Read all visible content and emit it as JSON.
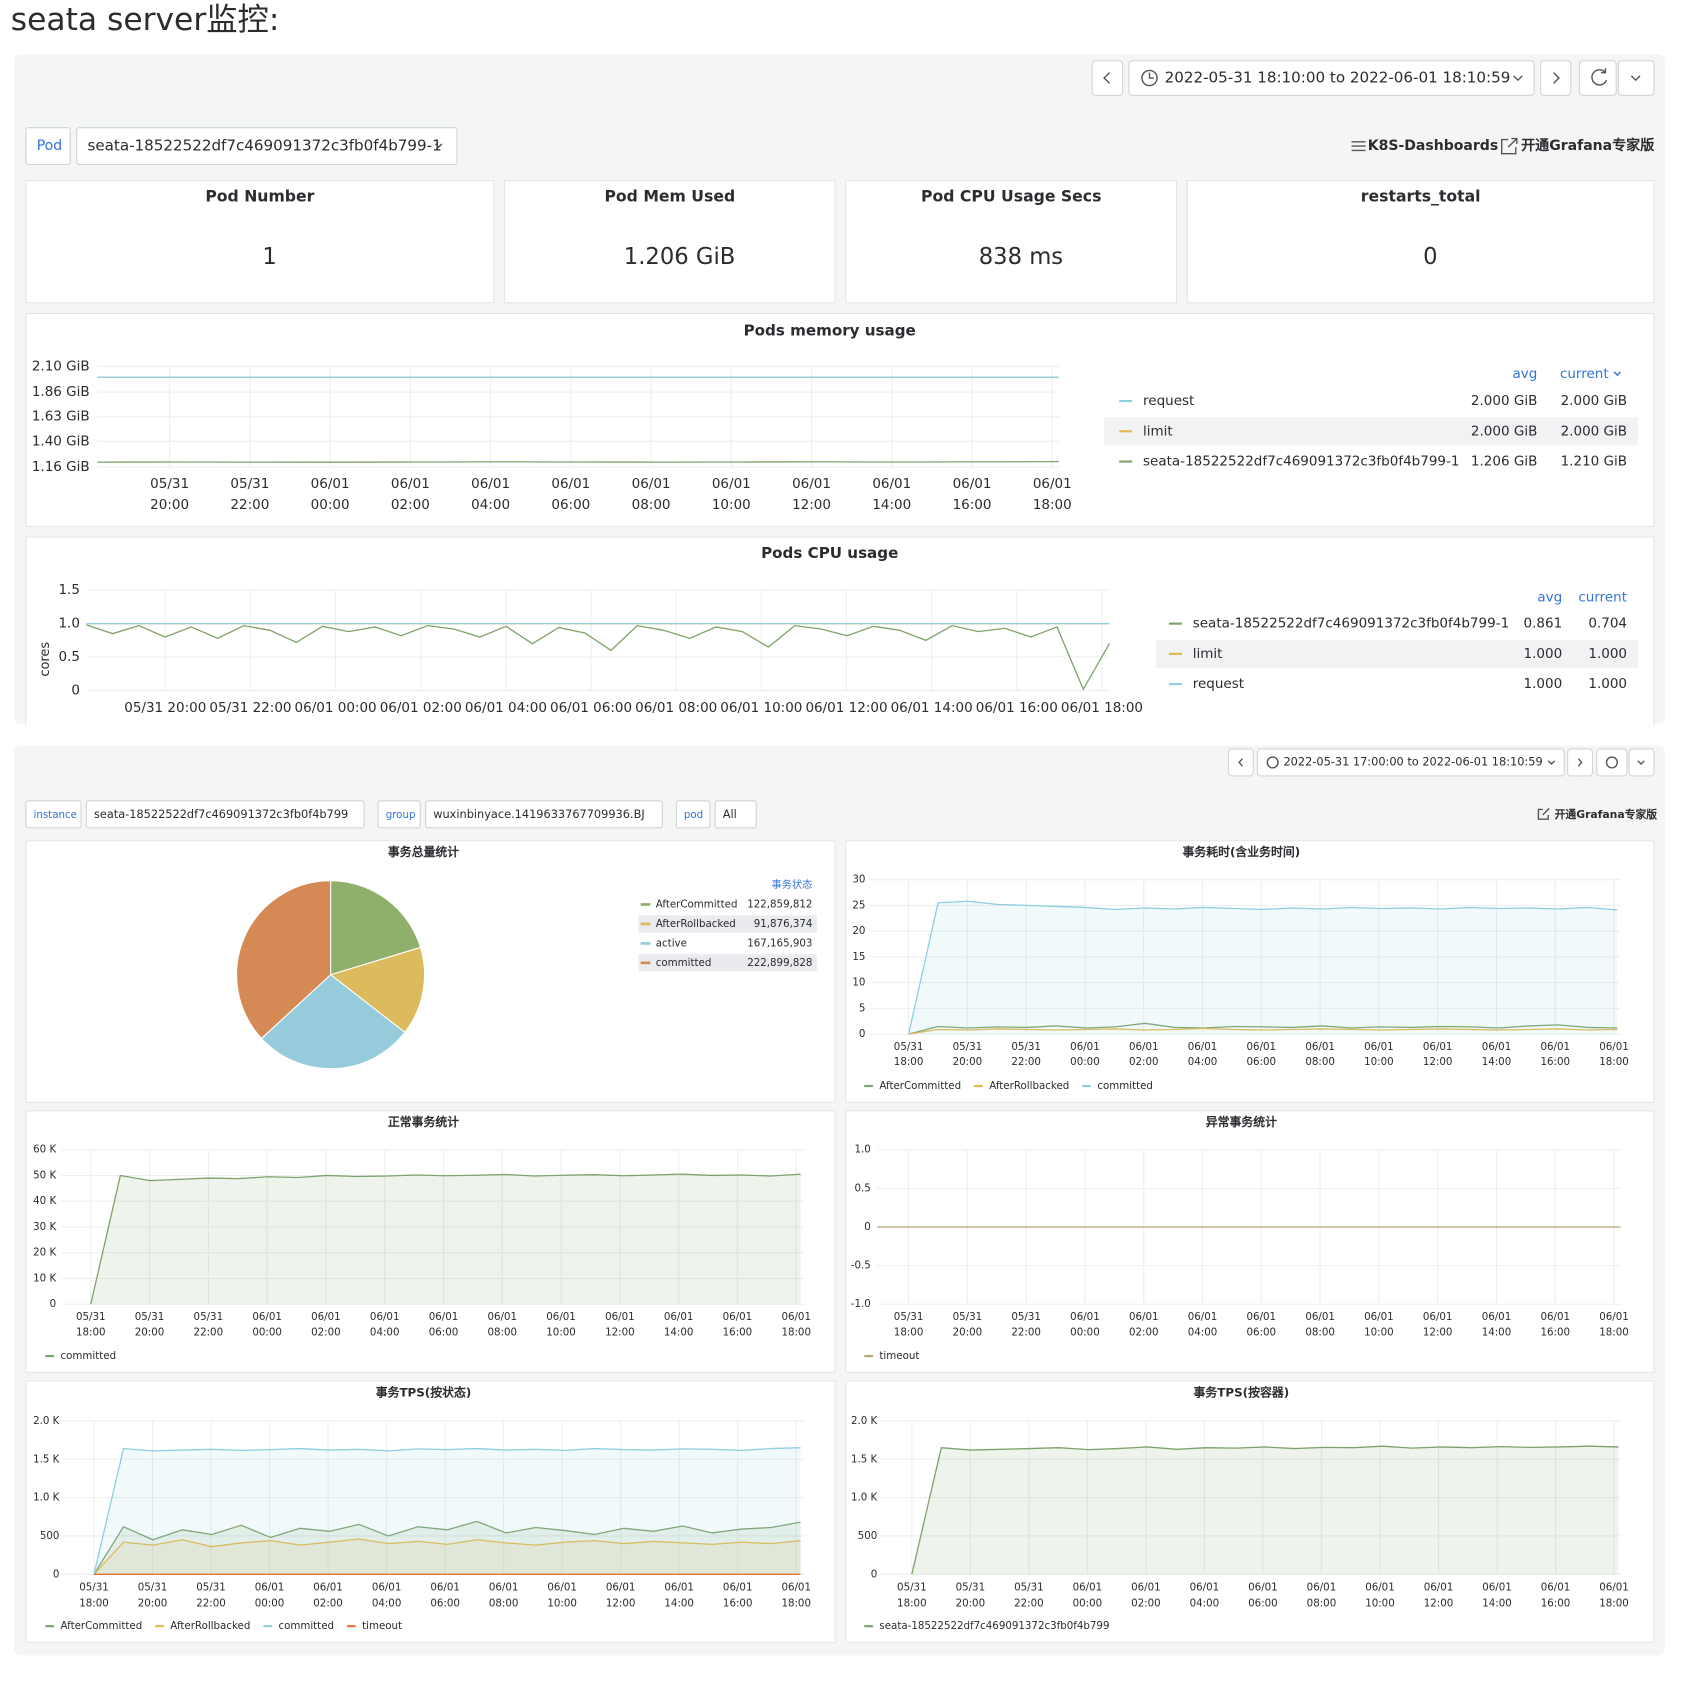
{
  "header": {
    "title": "seata server监控:"
  },
  "dashboard1": {
    "time_range": "2022-05-31 18:10:00 to 2022-06-01 18:10:59",
    "variable_label": "Pod",
    "variable_value": "seata-18522522df7c469091372c3fb0f4b799-1",
    "links": [
      "K8S-Dashboards",
      "开通Grafana专家版"
    ],
    "stats": [
      {
        "title": "Pod Number",
        "value": "1"
      },
      {
        "title": "Pod Mem Used",
        "value": "1.206 GiB"
      },
      {
        "title": "Pod CPU Usage Secs",
        "value": "838 ms"
      },
      {
        "title": "restarts_total",
        "value": "0"
      }
    ],
    "memory": {
      "type": "line",
      "title": "Pods memory usage",
      "ylim": [
        1.16,
        2.1
      ],
      "yticks": [
        {
          "value": 1.16,
          "label": "1.16 GiB"
        },
        {
          "value": 1.4,
          "label": "1.40 GiB"
        },
        {
          "value": 1.63,
          "label": "1.63 GiB"
        },
        {
          "value": 1.86,
          "label": "1.86 GiB"
        },
        {
          "value": 2.1,
          "label": "2.10 GiB"
        }
      ],
      "xticks": [
        [
          "05/31",
          "20:00"
        ],
        [
          "05/31",
          "22:00"
        ],
        [
          "06/01",
          "00:00"
        ],
        [
          "06/01",
          "02:00"
        ],
        [
          "06/01",
          "04:00"
        ],
        [
          "06/01",
          "06:00"
        ],
        [
          "06/01",
          "08:00"
        ],
        [
          "06/01",
          "10:00"
        ],
        [
          "06/01",
          "12:00"
        ],
        [
          "06/01",
          "14:00"
        ],
        [
          "06/01",
          "16:00"
        ],
        [
          "06/01",
          "18:00"
        ]
      ],
      "legend_columns": [
        "avg",
        "current"
      ],
      "series": [
        {
          "name": "seata-18522522df7c469091372c3fb0f4b799-1",
          "color": "#7ea26b",
          "avg": "1.206 GiB",
          "current": "1.210 GiB",
          "values": [
            1.205,
            1.206,
            1.205,
            1.204,
            1.206,
            1.207,
            1.206,
            1.205,
            1.206,
            1.207,
            1.206,
            1.208,
            1.21
          ]
        },
        {
          "name": "limit",
          "color": "#e5b84a",
          "avg": "2.000 GiB",
          "current": "2.000 GiB",
          "values": [
            2.0,
            2.0
          ]
        },
        {
          "name": "request",
          "color": "#8fcfe0",
          "avg": "2.000 GiB",
          "current": "2.000 GiB",
          "values": [
            2.0,
            2.0
          ]
        }
      ],
      "legend_order": [
        2,
        1,
        0
      ]
    },
    "cpu": {
      "type": "line",
      "title": "Pods CPU usage",
      "y_label": "cores",
      "ylim": [
        0,
        1.5
      ],
      "yticks": [
        0,
        0.5,
        {
          "value": 1,
          "label": "1.0"
        },
        1.5
      ],
      "xticks": [
        "05/31 20:00",
        "05/31 22:00",
        "06/01 00:00",
        "06/01 02:00",
        "06/01 04:00",
        "06/01 06:00",
        "06/01 08:00",
        "06/01 10:00",
        "06/01 12:00",
        "06/01 14:00",
        "06/01 16:00",
        "06/01 18:00"
      ],
      "legend_columns": [
        "avg",
        "current"
      ],
      "series": [
        {
          "name": "limit",
          "color": "#e5b84a",
          "avg": "1.000",
          "current": "1.000",
          "values": [
            1,
            1
          ]
        },
        {
          "name": "request",
          "color": "#8fcfe0",
          "avg": "1.000",
          "current": "1.000",
          "values": [
            1,
            1
          ]
        },
        {
          "name": "seata-18522522df7c469091372c3fb0f4b799-1",
          "color": "#7ea26b",
          "avg": "0.861",
          "current": "0.704",
          "values": [
            0.98,
            0.85,
            0.97,
            0.8,
            0.95,
            0.78,
            0.97,
            0.9,
            0.72,
            0.96,
            0.88,
            0.95,
            0.82,
            0.97,
            0.92,
            0.8,
            0.96,
            0.7,
            0.94,
            0.86,
            0.6,
            0.97,
            0.9,
            0.78,
            0.95,
            0.88,
            0.65,
            0.97,
            0.92,
            0.82,
            0.96,
            0.9,
            0.75,
            0.97,
            0.88,
            0.93,
            0.8,
            0.95,
            0.02,
            0.704
          ]
        }
      ],
      "legend_order": [
        2,
        0,
        1
      ]
    }
  },
  "dashboard2": {
    "time_range": "2022-05-31 17:00:00 to 2022-06-01 18:10:59",
    "variables": [
      {
        "label": "instance",
        "value": "seata-18522522df7c469091372c3fb0f4b799"
      },
      {
        "label": "group",
        "value": "wuxinbinyace.1419633767709936.BJ"
      },
      {
        "label": "pod",
        "value": "All"
      }
    ],
    "link": "开通Grafana专家版",
    "pie": {
      "type": "pie",
      "title": "事务总量统计",
      "legend_title": "事务状态",
      "categories": [
        "AfterCommitted",
        "AfterRollbacked",
        "active",
        "committed"
      ],
      "values": [
        122859812,
        91876374,
        167165903,
        222899828
      ],
      "value_labels": [
        "122,859,812",
        "91,876,374",
        "167,165,903",
        "222,899,828"
      ],
      "colors": [
        "#8fb06b",
        "#dcbb5f",
        "#96cbdc",
        "#d58a55"
      ]
    },
    "panels": [
      {
        "type": "line",
        "title": "事务耗时(含业务时间)",
        "ylim": [
          0,
          30
        ],
        "yticks": [
          0,
          5,
          10,
          15,
          20,
          25,
          30
        ],
        "xticks": [
          [
            "05/31",
            "18:00"
          ],
          [
            "05/31",
            "20:00"
          ],
          [
            "05/31",
            "22:00"
          ],
          [
            "06/01",
            "00:00"
          ],
          [
            "06/01",
            "02:00"
          ],
          [
            "06/01",
            "04:00"
          ],
          [
            "06/01",
            "06:00"
          ],
          [
            "06/01",
            "08:00"
          ],
          [
            "06/01",
            "10:00"
          ],
          [
            "06/01",
            "12:00"
          ],
          [
            "06/01",
            "14:00"
          ],
          [
            "06/01",
            "16:00"
          ],
          [
            "06/01",
            "18:00"
          ]
        ],
        "series": [
          {
            "name": "AfterCommitted",
            "color": "#7ea26b",
            "fill": false,
            "values": [
              0,
              1.5,
              1.2,
              1.4,
              1.3,
              1.6,
              1.2,
              1.4,
              2.1,
              1.3,
              1.2,
              1.5,
              1.4,
              1.3,
              1.6,
              1.2,
              1.4,
              1.3,
              1.5,
              1.4,
              1.2,
              1.6,
              1.8,
              1.3,
              1.2
            ]
          },
          {
            "name": "AfterRollbacked",
            "color": "#e5b84a",
            "fill": false,
            "values": [
              0,
              0.9,
              0.8,
              1,
              0.9,
              0.8,
              0.9,
              1,
              0.8,
              0.9,
              1.1,
              0.9,
              0.8,
              0.9,
              1,
              0.9,
              0.8,
              0.9,
              1,
              0.9,
              0.8,
              0.9,
              1,
              0.8,
              0.9
            ]
          },
          {
            "name": "committed",
            "color": "#8fcfe0",
            "fill": true,
            "values": [
              0,
              25.5,
              25.8,
              25.2,
              25,
              24.8,
              24.6,
              24.2,
              24.5,
              24.3,
              24.6,
              24.4,
              24.2,
              24.5,
              24.3,
              24.6,
              24.4,
              24.5,
              24.3,
              24.6,
              24.4,
              24.5,
              24.3,
              24.6,
              24.1
            ]
          }
        ]
      },
      {
        "type": "line",
        "title": "正常事务统计",
        "ylim": [
          0,
          60000
        ],
        "yticks": [
          0,
          {
            "value": 10000,
            "label": "10 K"
          },
          {
            "value": 20000,
            "label": "20 K"
          },
          {
            "value": 30000,
            "label": "30 K"
          },
          {
            "value": 40000,
            "label": "40 K"
          },
          {
            "value": 50000,
            "label": "50 K"
          },
          {
            "value": 60000,
            "label": "60 K"
          }
        ],
        "xticks": [
          [
            "05/31",
            "18:00"
          ],
          [
            "05/31",
            "20:00"
          ],
          [
            "05/31",
            "22:00"
          ],
          [
            "06/01",
            "00:00"
          ],
          [
            "06/01",
            "02:00"
          ],
          [
            "06/01",
            "04:00"
          ],
          [
            "06/01",
            "06:00"
          ],
          [
            "06/01",
            "08:00"
          ],
          [
            "06/01",
            "10:00"
          ],
          [
            "06/01",
            "12:00"
          ],
          [
            "06/01",
            "14:00"
          ],
          [
            "06/01",
            "16:00"
          ],
          [
            "06/01",
            "18:00"
          ]
        ],
        "series": [
          {
            "name": "committed",
            "color": "#7ea26b",
            "fill": true,
            "values": [
              0,
              50000,
              48000,
              48500,
              49000,
              48800,
              49500,
              49200,
              50000,
              49600,
              49800,
              50200,
              49900,
              50100,
              50400,
              49800,
              50100,
              50300,
              49900,
              50200,
              50500,
              50000,
              50200,
              49800,
              50500
            ]
          }
        ]
      },
      {
        "type": "line",
        "title": "异常事务统计",
        "ylim": [
          -1,
          1
        ],
        "yticks": [
          {
            "value": -1,
            "label": "-1.0"
          },
          -0.5,
          0,
          0.5,
          {
            "value": 1,
            "label": "1.0"
          }
        ],
        "xticks": [
          [
            "05/31",
            "18:00"
          ],
          [
            "05/31",
            "20:00"
          ],
          [
            "05/31",
            "22:00"
          ],
          [
            "06/01",
            "00:00"
          ],
          [
            "06/01",
            "02:00"
          ],
          [
            "06/01",
            "04:00"
          ],
          [
            "06/01",
            "06:00"
          ],
          [
            "06/01",
            "08:00"
          ],
          [
            "06/01",
            "10:00"
          ],
          [
            "06/01",
            "12:00"
          ],
          [
            "06/01",
            "14:00"
          ],
          [
            "06/01",
            "16:00"
          ],
          [
            "06/01",
            "18:00"
          ]
        ],
        "series": [
          {
            "name": "timeout",
            "color": "#b5a86e",
            "fill": false,
            "values": [
              0,
              0,
              0,
              0,
              0,
              0,
              0,
              0,
              0,
              0,
              0,
              0,
              0,
              0,
              0,
              0,
              0,
              0,
              0,
              0,
              0,
              0,
              0,
              0,
              0
            ]
          }
        ]
      },
      {
        "type": "line",
        "title": "事务TPS(按状态)",
        "ylim": [
          0,
          2000
        ],
        "yticks": [
          0,
          500,
          {
            "value": 1000,
            "label": "1.0 K"
          },
          {
            "value": 1500,
            "label": "1.5 K"
          },
          {
            "value": 2000,
            "label": "2.0 K"
          }
        ],
        "xticks": [
          [
            "05/31",
            "18:00"
          ],
          [
            "05/31",
            "20:00"
          ],
          [
            "05/31",
            "22:00"
          ],
          [
            "06/01",
            "00:00"
          ],
          [
            "06/01",
            "02:00"
          ],
          [
            "06/01",
            "04:00"
          ],
          [
            "06/01",
            "06:00"
          ],
          [
            "06/01",
            "08:00"
          ],
          [
            "06/01",
            "10:00"
          ],
          [
            "06/01",
            "12:00"
          ],
          [
            "06/01",
            "14:00"
          ],
          [
            "06/01",
            "16:00"
          ],
          [
            "06/01",
            "18:00"
          ]
        ],
        "series": [
          {
            "name": "AfterCommitted",
            "color": "#7ea26b",
            "fill": true,
            "values": [
              0,
              620,
              450,
              580,
              520,
              640,
              480,
              600,
              560,
              650,
              500,
              620,
              580,
              690,
              540,
              610,
              570,
              520,
              600,
              560,
              630,
              540,
              590,
              610,
              680
            ]
          },
          {
            "name": "AfterRollbacked",
            "color": "#e5b84a",
            "fill": true,
            "values": [
              0,
              420,
              380,
              450,
              360,
              410,
              440,
              380,
              420,
              460,
              400,
              430,
              390,
              450,
              410,
              380,
              420,
              440,
              400,
              430,
              410,
              390,
              420,
              400,
              440
            ]
          },
          {
            "name": "committed",
            "color": "#8fcfe0",
            "fill": true,
            "values": [
              0,
              1640,
              1610,
              1620,
              1630,
              1615,
              1625,
              1640,
              1620,
              1630,
              1610,
              1635,
              1625,
              1640,
              1620,
              1630,
              1615,
              1640,
              1625,
              1620,
              1635,
              1630,
              1615,
              1640,
              1650
            ]
          },
          {
            "name": "timeout",
            "color": "#e0752d",
            "fill": false,
            "values": [
              0,
              0,
              0,
              0,
              0,
              0,
              0,
              0,
              0,
              0,
              0,
              0,
              0,
              0,
              0,
              0,
              0,
              0,
              0,
              0,
              0,
              0,
              0,
              0,
              0
            ]
          }
        ]
      },
      {
        "type": "line",
        "title": "事务TPS(按容器)",
        "ylim": [
          0,
          2000
        ],
        "yticks": [
          0,
          500,
          {
            "value": 1000,
            "label": "1.0 K"
          },
          {
            "value": 1500,
            "label": "1.5 K"
          },
          {
            "value": 2000,
            "label": "2.0 K"
          }
        ],
        "xticks": [
          [
            "05/31",
            "18:00"
          ],
          [
            "05/31",
            "20:00"
          ],
          [
            "05/31",
            "22:00"
          ],
          [
            "06/01",
            "00:00"
          ],
          [
            "06/01",
            "02:00"
          ],
          [
            "06/01",
            "04:00"
          ],
          [
            "06/01",
            "06:00"
          ],
          [
            "06/01",
            "08:00"
          ],
          [
            "06/01",
            "10:00"
          ],
          [
            "06/01",
            "12:00"
          ],
          [
            "06/01",
            "14:00"
          ],
          [
            "06/01",
            "16:00"
          ],
          [
            "06/01",
            "18:00"
          ]
        ],
        "series": [
          {
            "name": "seata-18522522df7c469091372c3fb0f4b799",
            "color": "#7ea26b",
            "fill": true,
            "values": [
              0,
              1650,
              1620,
              1630,
              1640,
              1650,
              1625,
              1640,
              1660,
              1630,
              1650,
              1645,
              1660,
              1640,
              1655,
              1650,
              1670,
              1645,
              1660,
              1650,
              1665,
              1655,
              1660,
              1670,
              1660
            ]
          }
        ]
      }
    ]
  }
}
